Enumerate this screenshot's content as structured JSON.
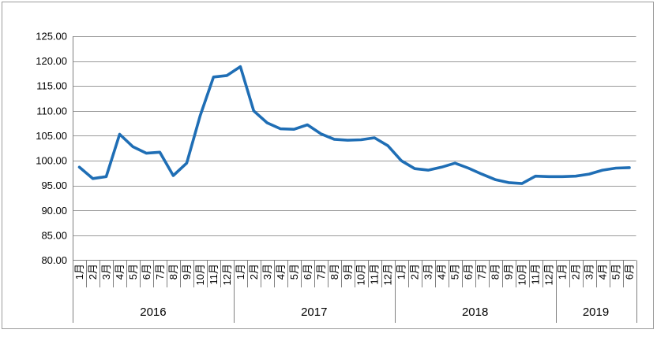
{
  "chart_data": {
    "type": "line",
    "title": "",
    "legend": "none",
    "grid": true,
    "ylim": [
      80,
      125
    ],
    "y_tick_step": 5,
    "y_ticks": [
      "125.00",
      "120.00",
      "115.00",
      "110.00",
      "105.00",
      "100.00",
      "95.00",
      "90.00",
      "85.00",
      "80.00"
    ],
    "year_groups": [
      {
        "label": "2016",
        "months": [
          "1月",
          "2月",
          "3月",
          "4月",
          "5月",
          "6月",
          "7月",
          "8月",
          "9月",
          "10月",
          "11月",
          "12月"
        ]
      },
      {
        "label": "2017",
        "months": [
          "1月",
          "2月",
          "3月",
          "4月",
          "5月",
          "6月",
          "7月",
          "8月",
          "9月",
          "10月",
          "11月",
          "12月"
        ]
      },
      {
        "label": "2018",
        "months": [
          "1月",
          "2月",
          "3月",
          "4月",
          "5月",
          "6月",
          "7月",
          "8月",
          "9月",
          "10月",
          "11月",
          "12月"
        ]
      },
      {
        "label": "2019",
        "months": [
          "1月",
          "2月",
          "3月",
          "4月",
          "5月",
          "6月"
        ]
      }
    ],
    "values": [
      98.7,
      96.4,
      96.8,
      105.3,
      102.8,
      101.5,
      101.7,
      97.0,
      99.5,
      109.0,
      116.8,
      117.1,
      118.9,
      110.0,
      107.6,
      106.4,
      106.3,
      107.2,
      105.4,
      104.3,
      104.1,
      104.2,
      104.6,
      103.0,
      100.0,
      98.4,
      98.1,
      98.7,
      99.5,
      98.5,
      97.3,
      96.2,
      95.6,
      95.4,
      96.9,
      96.8,
      96.8,
      96.9,
      97.3,
      98.1,
      98.5,
      98.6
    ],
    "colors": {
      "line": "#1f6eb5",
      "gridline": "#999999",
      "axis": "#808080",
      "text": "#000000",
      "frame": "#9b9b9b"
    }
  }
}
